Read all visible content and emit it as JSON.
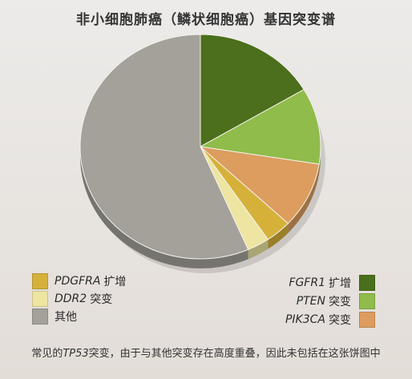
{
  "title": "非小细胞肺癌（鳞状细胞癌）基因突变谱",
  "chart_data": {
    "type": "pie",
    "title": "非小细胞肺癌（鳞状细胞癌）基因突变谱",
    "slices": [
      {
        "gene": "FGFR1",
        "suffix": "扩增",
        "value": 16.5,
        "color": "#4b6f1c"
      },
      {
        "gene": "PTEN",
        "suffix": "突变",
        "value": 11.0,
        "color": "#8fbc4a"
      },
      {
        "gene": "PIK3CA",
        "suffix": "突变",
        "value": 9.5,
        "color": "#dc9d5f"
      },
      {
        "gene": "PDGFRA",
        "suffix": "扩增",
        "value": 3.5,
        "color": "#d6b13a"
      },
      {
        "gene": "DDR2",
        "suffix": "突变",
        "value": 3.0,
        "color": "#ede5a1"
      },
      {
        "gene": "",
        "suffix": "其他",
        "value": 56.5,
        "color": "#a4a19a"
      }
    ],
    "legend_placement": "bottom"
  },
  "legend_left": [
    {
      "gene": "PDGFRA",
      "suffix": "扩增",
      "color": "#d6b13a"
    },
    {
      "gene": "DDR2",
      "suffix": "突变",
      "color": "#ede5a1"
    },
    {
      "gene": "",
      "suffix": "其他",
      "color": "#a4a19a"
    }
  ],
  "legend_right": [
    {
      "gene": "FGFR1",
      "suffix": "扩增",
      "color": "#4b6f1c"
    },
    {
      "gene": "PTEN",
      "suffix": "突变",
      "color": "#8fbc4a"
    },
    {
      "gene": "PIK3CA",
      "suffix": "突变",
      "color": "#dc9d5f"
    }
  ],
  "footnote": {
    "prefix": "常见的",
    "gene": "TP53",
    "suffix": "突变，由于与其他突变存在高度重叠，因此未包括在这张饼图中"
  }
}
